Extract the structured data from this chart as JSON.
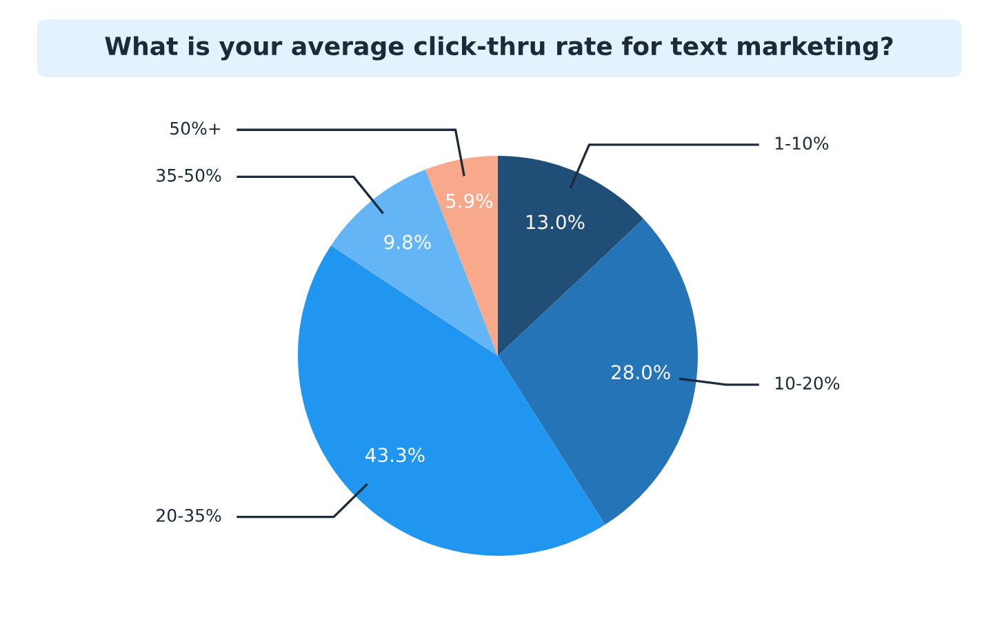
{
  "chart_data": {
    "type": "pie",
    "title": "What is your average click-thru rate for text marketing?",
    "categories": [
      "1-10%",
      "10-20%",
      "20-35%",
      "35-50%",
      "50%+"
    ],
    "values": [
      13.0,
      28.0,
      43.3,
      9.8,
      5.9
    ],
    "value_labels": [
      "13.0%",
      "28.0%",
      "43.3%",
      "9.8%",
      "5.9%"
    ],
    "colors": [
      "#204e77",
      "#2474b7",
      "#2196f0",
      "#64b5f6",
      "#f9a98b"
    ],
    "legend": false
  }
}
